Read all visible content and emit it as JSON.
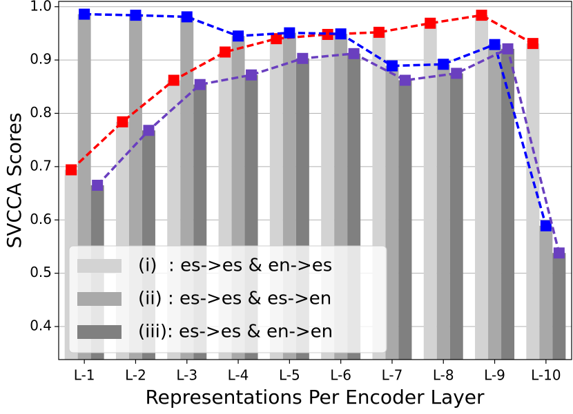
{
  "chart_data": {
    "type": "bar-line",
    "xlabel": "Representations Per Encoder Layer",
    "ylabel": "SVCCA Scores",
    "categories": [
      "L-1",
      "L-2",
      "L-3",
      "L-4",
      "L-5",
      "L-6",
      "L-7",
      "L-8",
      "L-9",
      "L-10"
    ],
    "ylim": [
      0.338,
      1.01
    ],
    "yticks": [
      0.4,
      0.5,
      0.6,
      0.7,
      0.8,
      0.9,
      {
        "value": 1.0,
        "label": "1.0"
      }
    ],
    "grid": true,
    "legend": "lower left",
    "series": [
      {
        "name": "(i)  : es->es & en->es",
        "color": "#ff0000",
        "bar_color": "#d3d3d3",
        "values": [
          0.694,
          0.784,
          0.862,
          0.915,
          0.94,
          0.948,
          0.952,
          0.969,
          0.984,
          0.931
        ]
      },
      {
        "name": "(ii) : es->es & es->en",
        "color": "#0000ff",
        "bar_color": "#a9a9a9",
        "values": [
          0.986,
          0.984,
          0.981,
          0.945,
          0.951,
          0.949,
          0.889,
          0.892,
          0.929,
          0.589
        ]
      },
      {
        "name": "(iii): es->es & en->en",
        "color": "#6a3fbf",
        "bar_color": "#808080",
        "values": [
          0.665,
          0.768,
          0.854,
          0.872,
          0.903,
          0.912,
          0.862,
          0.875,
          0.921,
          0.538
        ]
      }
    ]
  }
}
